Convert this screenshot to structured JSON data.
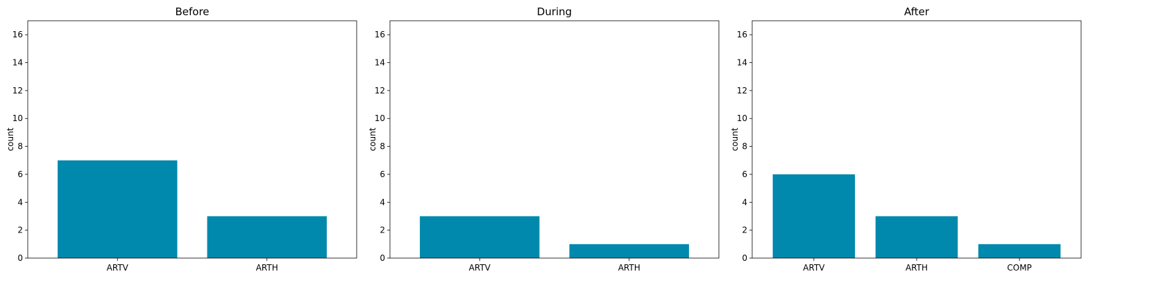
{
  "colors": {
    "bar": "#0088ad",
    "axis": "#000000",
    "background": "#ffffff"
  },
  "chart_data": [
    {
      "type": "bar",
      "title": "Before",
      "categories": [
        "ARTV",
        "ARTH"
      ],
      "values": [
        7,
        3
      ],
      "xlabel": "",
      "ylabel": "count",
      "ylim": [
        0,
        17
      ],
      "yticks": [
        0,
        2,
        4,
        6,
        8,
        10,
        12,
        14,
        16
      ],
      "grid": false
    },
    {
      "type": "bar",
      "title": "During",
      "categories": [
        "ARTV",
        "ARTH"
      ],
      "values": [
        3,
        1
      ],
      "xlabel": "",
      "ylabel": "count",
      "ylim": [
        0,
        17
      ],
      "yticks": [
        0,
        2,
        4,
        6,
        8,
        10,
        12,
        14,
        16
      ],
      "grid": false
    },
    {
      "type": "bar",
      "title": "After",
      "categories": [
        "ARTV",
        "ARTH",
        "COMP"
      ],
      "values": [
        6,
        3,
        1
      ],
      "xlabel": "",
      "ylabel": "count",
      "ylim": [
        0,
        17
      ],
      "yticks": [
        0,
        2,
        4,
        6,
        8,
        10,
        12,
        14,
        16
      ],
      "grid": false
    }
  ]
}
